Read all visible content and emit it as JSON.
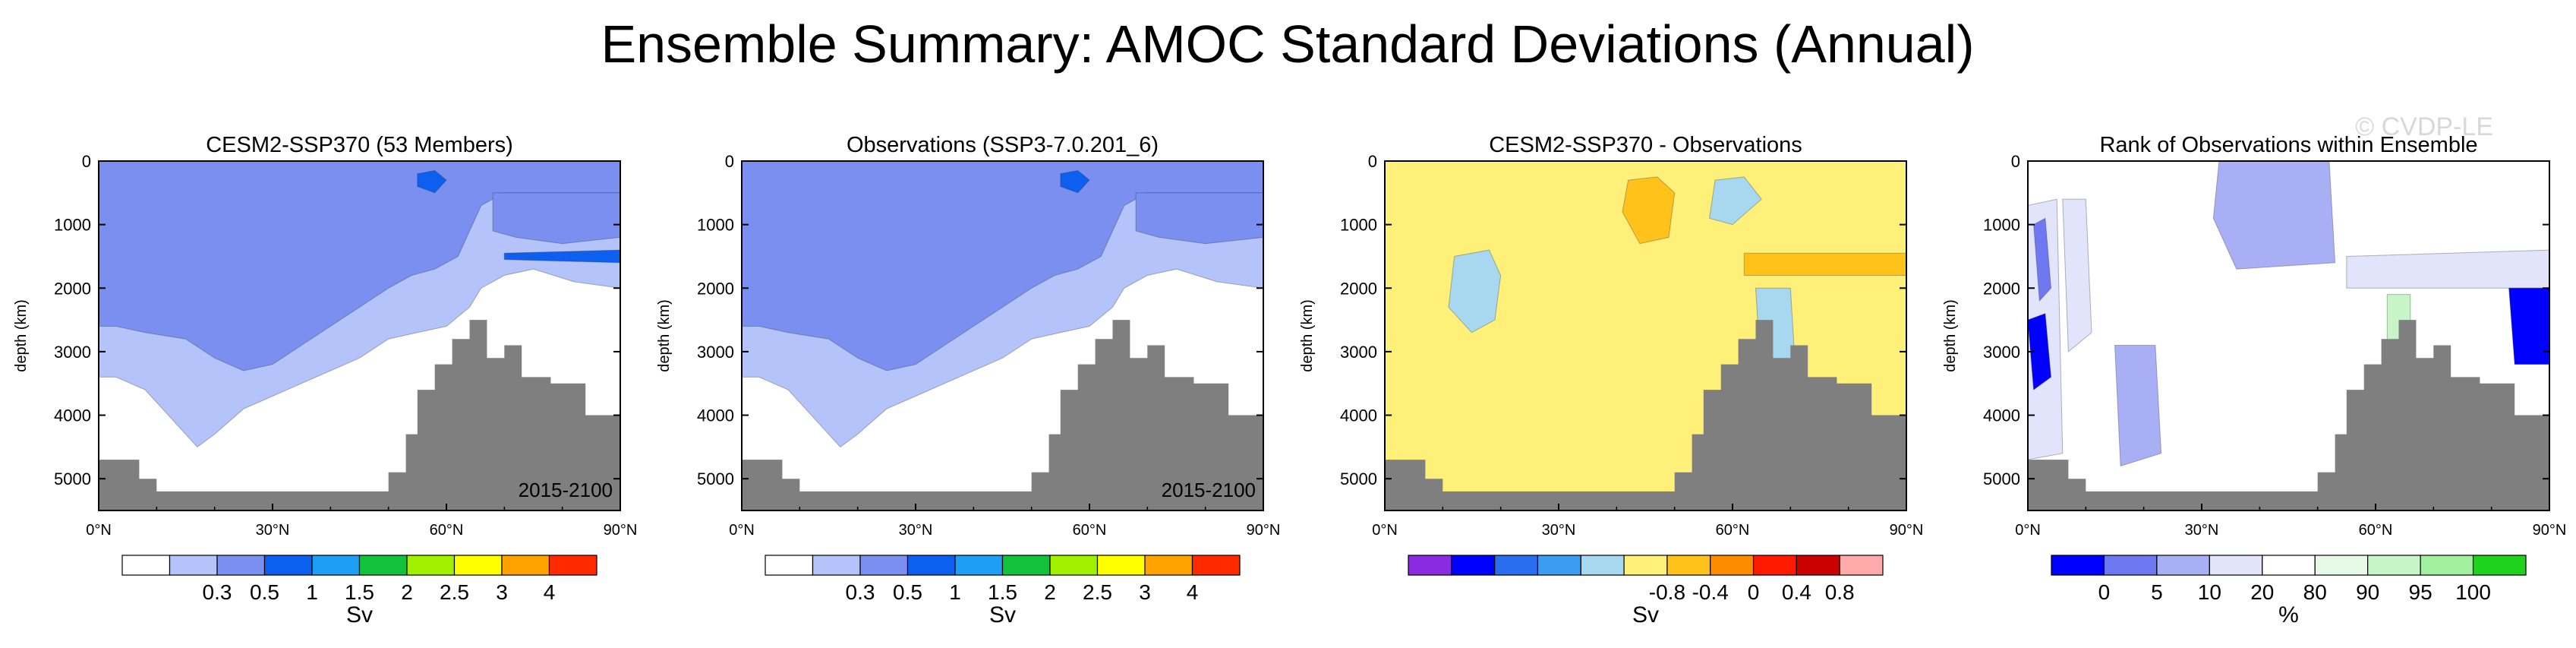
{
  "page": {
    "title": "Ensemble Summary: AMOC Standard Deviations (Annual)",
    "watermark": "© CVDP-LE"
  },
  "chart_data": [
    {
      "type": "heatmap",
      "title": "CESM2-SSP370 (53 Members)",
      "ylabel": "depth (km)",
      "xlabel": "",
      "x_ticks": [
        "0°N",
        "30°N",
        "60°N",
        "90°N"
      ],
      "x_range": [
        0,
        90
      ],
      "y_ticks": [
        "0",
        "1000",
        "2000",
        "3000",
        "4000",
        "5000"
      ],
      "y_range": [
        0,
        5500
      ],
      "period": "2015-2100",
      "colorbar": {
        "colors": [
          "#ffffff",
          "#b4c3fa",
          "#7b8ff0",
          "#0d5ff0",
          "#1e9ef5",
          "#12c23c",
          "#a0f000",
          "#ffff00",
          "#ffa200",
          "#ff2a00"
        ],
        "labels": [
          "0.3",
          "0.5",
          "1",
          "1.5",
          "2",
          "2.5",
          "3",
          "4"
        ],
        "units": "Sv"
      }
    },
    {
      "type": "heatmap",
      "title": "Observations (SSP3-7.0.201_6)",
      "ylabel": "depth (km)",
      "xlabel": "",
      "x_ticks": [
        "0°N",
        "30°N",
        "60°N",
        "90°N"
      ],
      "x_range": [
        0,
        90
      ],
      "y_ticks": [
        "0",
        "1000",
        "2000",
        "3000",
        "4000",
        "5000"
      ],
      "y_range": [
        0,
        5500
      ],
      "period": "2015-2100",
      "colorbar": {
        "colors": [
          "#ffffff",
          "#b4c3fa",
          "#7b8ff0",
          "#0d5ff0",
          "#1e9ef5",
          "#12c23c",
          "#a0f000",
          "#ffff00",
          "#ffa200",
          "#ff2a00"
        ],
        "labels": [
          "0.3",
          "0.5",
          "1",
          "1.5",
          "2",
          "2.5",
          "3",
          "4"
        ],
        "units": "Sv"
      }
    },
    {
      "type": "heatmap",
      "title": "CESM2-SSP370 - Observations",
      "ylabel": "depth (km)",
      "xlabel": "",
      "x_ticks": [
        "0°N",
        "30°N",
        "60°N",
        "90°N"
      ],
      "x_range": [
        0,
        90
      ],
      "y_ticks": [
        "0",
        "1000",
        "2000",
        "3000",
        "4000",
        "5000"
      ],
      "y_range": [
        0,
        5500
      ],
      "period": "",
      "colorbar": {
        "colors": [
          "#8a2be2",
          "#0000ff",
          "#2a6ef0",
          "#3c9cf0",
          "#a8d8f0",
          "#fff07a",
          "#ffc21a",
          "#ff8c00",
          "#ff1a00",
          "#c80000",
          "#ffaaaa"
        ],
        "labels": [
          "-0.8",
          "-0.4",
          "0",
          "0.4",
          "0.8"
        ],
        "units": "Sv"
      }
    },
    {
      "type": "heatmap",
      "title": "Rank of Observations within Ensemble",
      "ylabel": "depth (km)",
      "xlabel": "",
      "x_ticks": [
        "0°N",
        "30°N",
        "60°N",
        "90°N"
      ],
      "x_range": [
        0,
        90
      ],
      "y_ticks": [
        "0",
        "1000",
        "2000",
        "3000",
        "4000",
        "5000"
      ],
      "y_range": [
        0,
        5500
      ],
      "period": "",
      "colorbar": {
        "colors": [
          "#0000ff",
          "#6e78f0",
          "#a9aff5",
          "#e1e4fa",
          "#ffffff",
          "#e6fae6",
          "#c8f5c8",
          "#a0f0a0",
          "#1ed21e"
        ],
        "labels": [
          "0",
          "5",
          "10",
          "20",
          "80",
          "90",
          "95",
          "100"
        ],
        "units": "%"
      }
    }
  ]
}
